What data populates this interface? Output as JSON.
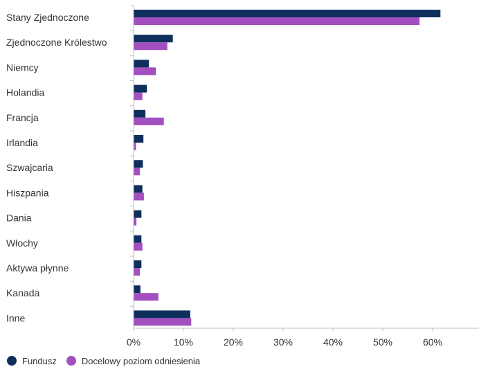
{
  "chart_data": {
    "type": "bar",
    "orientation": "horizontal",
    "title": "",
    "xlabel": "",
    "ylabel": "",
    "categories": [
      "Stany Zjednoczone",
      "Zjednoczone Królestwo",
      "Niemcy",
      "Holandia",
      "Francja",
      "Irlandia",
      "Szwajcaria",
      "Hiszpania",
      "Dania",
      "Włochy",
      "Aktywa płynne",
      "Kanada",
      "Inne"
    ],
    "series": [
      {
        "name": "Fundusz",
        "color": "#0e2f5c",
        "values": [
          61.5,
          7.8,
          3.0,
          2.6,
          2.3,
          1.9,
          1.8,
          1.7,
          1.5,
          1.5,
          1.5,
          1.3,
          11.3
        ]
      },
      {
        "name": "Docelowy poziom odniesienia",
        "color": "#a24fbf",
        "values": [
          57.3,
          6.7,
          4.4,
          1.7,
          6.0,
          0.4,
          1.2,
          2.0,
          0.5,
          1.7,
          1.2,
          4.9,
          11.5
        ]
      }
    ],
    "xlim": [
      0,
      70
    ],
    "xticks": [
      0,
      10,
      20,
      30,
      40,
      50,
      60
    ],
    "xtick_labels": [
      "0%",
      "10%",
      "20%",
      "30%",
      "40%",
      "50%",
      "60%"
    ],
    "grid": false,
    "legend_position": "bottom-left"
  }
}
